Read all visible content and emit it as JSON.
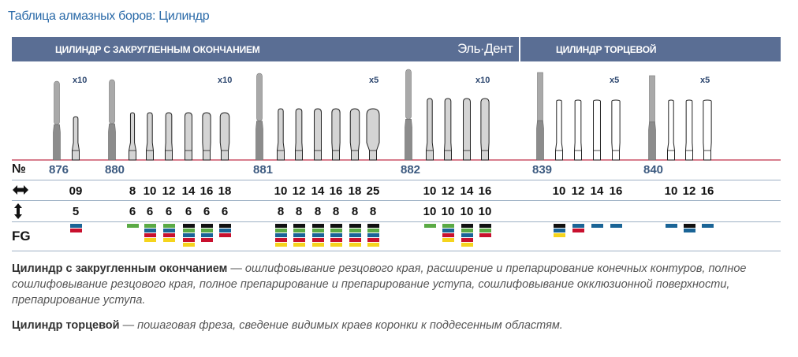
{
  "title": "Таблица алмазных боров: Цилиндр",
  "header": {
    "section_left": "ЦИЛИНДР С ЗАКРУГЛЕННЫМ ОКОНЧАНИЕМ",
    "brand": "Эль·Дент",
    "section_right": "ЦИЛИНДР ТОРЦЕВОЙ"
  },
  "row_labels": {
    "number": "№",
    "diameter_icon": "left-right-arrow-icon",
    "length_icon": "up-down-arrow-icon",
    "fg": "FG"
  },
  "colors": {
    "header_bg": "#5a6e94",
    "black": "#111111",
    "green": "#5aaa45",
    "blue": "#1a6496",
    "red": "#c8102e",
    "yellow": "#f5d41d"
  },
  "groups": [
    {
      "id": "876",
      "magnification": "x10",
      "sizes": [
        {
          "diameter": "09",
          "length": "5",
          "fg": [
            "blue",
            "red"
          ]
        }
      ]
    },
    {
      "id": "880",
      "magnification": "x10",
      "sizes": [
        {
          "diameter": "8",
          "length": "6",
          "fg": [
            "green"
          ]
        },
        {
          "diameter": "10",
          "length": "6",
          "fg": [
            "green",
            "blue",
            "red",
            "yellow"
          ]
        },
        {
          "diameter": "12",
          "length": "6",
          "fg": [
            "green",
            "blue",
            "red",
            "yellow"
          ]
        },
        {
          "diameter": "14",
          "length": "6",
          "fg": [
            "black",
            "green",
            "blue",
            "red",
            "yellow"
          ]
        },
        {
          "diameter": "16",
          "length": "6",
          "fg": [
            "black",
            "green",
            "blue",
            "red"
          ]
        },
        {
          "diameter": "18",
          "length": "6",
          "fg": [
            "black",
            "blue",
            "red"
          ]
        }
      ]
    },
    {
      "id": "881",
      "magnification": "x5",
      "sizes": [
        {
          "diameter": "10",
          "length": "8",
          "fg": [
            "black",
            "green",
            "blue",
            "red",
            "yellow"
          ]
        },
        {
          "diameter": "12",
          "length": "8",
          "fg": [
            "black",
            "green",
            "blue",
            "red",
            "yellow"
          ]
        },
        {
          "diameter": "14",
          "length": "8",
          "fg": [
            "black",
            "green",
            "blue",
            "red",
            "yellow"
          ]
        },
        {
          "diameter": "16",
          "length": "8",
          "fg": [
            "black",
            "green",
            "blue",
            "red",
            "yellow"
          ]
        },
        {
          "diameter": "18",
          "length": "8",
          "fg": [
            "black",
            "green",
            "blue",
            "red",
            "yellow"
          ]
        },
        {
          "diameter": "25",
          "length": "8",
          "fg": [
            "black",
            "green",
            "blue",
            "red",
            "yellow"
          ]
        }
      ]
    },
    {
      "id": "882",
      "magnification": "x10",
      "sizes": [
        {
          "diameter": "10",
          "length": "10",
          "fg": [
            "green"
          ]
        },
        {
          "diameter": "12",
          "length": "10",
          "fg": [
            "green",
            "blue",
            "red",
            "yellow"
          ]
        },
        {
          "diameter": "14",
          "length": "10",
          "fg": [
            "black",
            "green",
            "blue",
            "red",
            "yellow"
          ]
        },
        {
          "diameter": "16",
          "length": "10",
          "fg": [
            "black",
            "green",
            "red"
          ]
        }
      ]
    },
    {
      "id": "839",
      "magnification": "x5",
      "sizes": [
        {
          "diameter": "10",
          "length": "",
          "fg": [
            "black",
            "blue",
            "yellow"
          ]
        },
        {
          "diameter": "12",
          "length": "",
          "fg": [
            "blue",
            "red"
          ]
        },
        {
          "diameter": "14",
          "length": "",
          "fg": [
            "blue"
          ]
        },
        {
          "diameter": "16",
          "length": "",
          "fg": [
            "blue"
          ]
        }
      ]
    },
    {
      "id": "840",
      "magnification": "x5",
      "sizes": [
        {
          "diameter": "10",
          "length": "",
          "fg": [
            "blue"
          ]
        },
        {
          "diameter": "12",
          "length": "",
          "fg": [
            "black",
            "blue"
          ]
        },
        {
          "diameter": "16",
          "length": "",
          "fg": [
            "blue"
          ]
        }
      ]
    }
  ],
  "descriptions": [
    {
      "term": "Цилиндр с закругленным окончанием",
      "dash": " — ",
      "text": "ошлифовывание резцового края, расширение и препарирование конечных контуров, полное сошлифовывание резцового края, полное препарирование и препарирование уступа, сошлифовывание окклюзионной поверхности, препарирование уступа."
    },
    {
      "term": "Цилиндр торцевой",
      "dash": " — ",
      "text": "пошаговая фреза, сведение видимых краев коронки к поддесенным областям."
    }
  ]
}
